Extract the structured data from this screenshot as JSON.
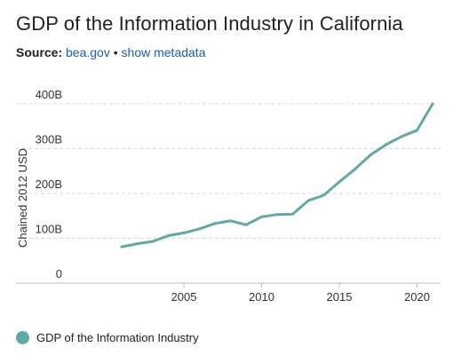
{
  "title": "GDP of the Information Industry in California",
  "source": {
    "label": "Source:",
    "link_text": "bea.gov",
    "separator": "•",
    "metadata_link": "show metadata"
  },
  "colors": {
    "series": "#5fa9a6",
    "grid": "#d9d9d9",
    "link": "#1a5fb4"
  },
  "chart_data": {
    "type": "line",
    "ylabel": "Chained 2012 USD",
    "xlabel": "",
    "xlim": [
      1997,
      2021
    ],
    "ylim": [
      0,
      400
    ],
    "y_ticks": [
      {
        "value": 0,
        "label": "0"
      },
      {
        "value": 100,
        "label": "100B"
      },
      {
        "value": 200,
        "label": "200B"
      },
      {
        "value": 300,
        "label": "300B"
      },
      {
        "value": 400,
        "label": "400B"
      }
    ],
    "x_ticks": [
      {
        "value": 2005,
        "label": "2005"
      },
      {
        "value": 2010,
        "label": "2010"
      },
      {
        "value": 2015,
        "label": "2015"
      },
      {
        "value": 2020,
        "label": "2020"
      }
    ],
    "grid": true,
    "legend_position": "bottom-left",
    "series": [
      {
        "name": "GDP of the Information Industry",
        "x": [
          2001,
          2002,
          2003,
          2004,
          2005,
          2006,
          2007,
          2008,
          2009,
          2010,
          2011,
          2012,
          2013,
          2014,
          2015,
          2016,
          2017,
          2018,
          2019,
          2020,
          2021
        ],
        "values": [
          81,
          88,
          93,
          106,
          112,
          121,
          133,
          139,
          130,
          148,
          153,
          154,
          184,
          196,
          226,
          254,
          286,
          309,
          327,
          341,
          400
        ]
      }
    ]
  }
}
